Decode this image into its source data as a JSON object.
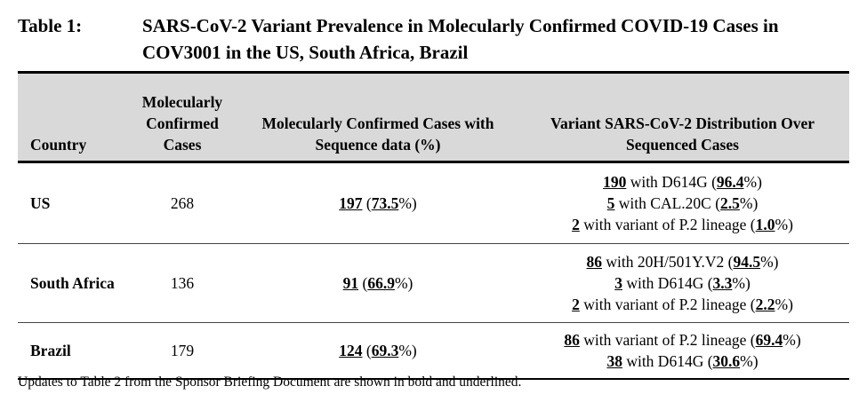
{
  "caption": {
    "label": "Table 1:",
    "title": "SARS-CoV-2 Variant Prevalence in Molecularly Confirmed COVID-19 Cases in COV3001 in the US, South Africa, Brazil"
  },
  "table": {
    "headers": {
      "country": "Country",
      "confirmed": "Molecularly Confirmed Cases",
      "sequenced": "Molecularly Confirmed Cases with Sequence data (%)",
      "distribution": "Variant SARS-CoV-2 Distribution Over Sequenced Cases"
    },
    "rows": [
      {
        "country": "US",
        "confirmed": "268",
        "seq_count": "197",
        "seq_pct": "73.5",
        "distribution": [
          {
            "count": "190",
            "text": " with D614G (",
            "pct": "96.4"
          },
          {
            "count": "5",
            "text": " with CAL.20C (",
            "pct": "2.5"
          },
          {
            "count": "2",
            "text": " with variant of P.2 lineage (",
            "pct": "1.0"
          }
        ]
      },
      {
        "country": "South Africa",
        "confirmed": "136",
        "seq_count": "91",
        "seq_pct": "66.9",
        "distribution": [
          {
            "count": "86",
            "text": " with 20H/501Y.V2 (",
            "pct": "94.5"
          },
          {
            "count": "3",
            "text": " with D614G (",
            "pct": "3.3"
          },
          {
            "count": "2",
            "text": " with variant of P.2 lineage (",
            "pct": "2.2"
          }
        ]
      },
      {
        "country": "Brazil",
        "confirmed": "179",
        "seq_count": "124",
        "seq_pct": "69.3",
        "distribution": [
          {
            "count": "86",
            "text": " with variant of P.2 lineage (",
            "pct": "69.4"
          },
          {
            "count": "38",
            "text": " with D614G (",
            "pct": "30.6"
          }
        ]
      }
    ]
  },
  "footnote": "Updates to Table 2 from the Sponsor Briefing Document are shown in bold and underlined."
}
